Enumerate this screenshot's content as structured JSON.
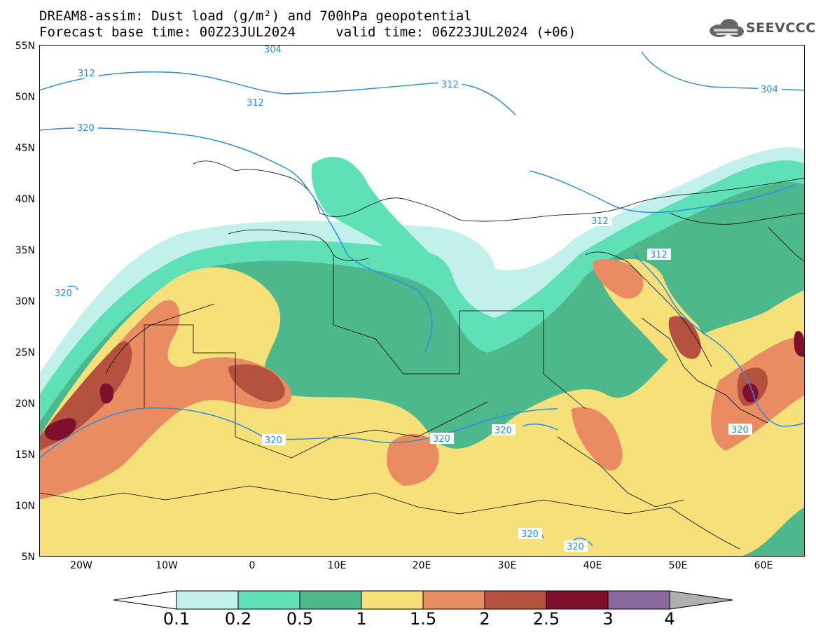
{
  "title": {
    "line1": "DREAM8-assim: Dust load (g/m²) and 700hPa geopotential",
    "line2_left": "Forecast base time: 00Z23JUL2024",
    "line2_right": "valid time: 06Z23JUL2024 (+06)"
  },
  "logo": {
    "text": "SEEVCCC",
    "icon": "cloud-icon"
  },
  "map": {
    "lat_labels": [
      "55N",
      "50N",
      "45N",
      "40N",
      "35N",
      "30N",
      "25N",
      "20N",
      "15N",
      "10N",
      "5N"
    ],
    "lon_labels": [
      "20W",
      "10W",
      "0",
      "10E",
      "20E",
      "30E",
      "40E",
      "50E",
      "60E"
    ],
    "contour_labels": [
      "304",
      "312",
      "312",
      "312",
      "304",
      "320",
      "312",
      "312",
      "320",
      "320",
      "320",
      "320",
      "320",
      "312",
      "320",
      "320"
    ],
    "colors": {
      "ocean_bg": "#ffffff",
      "border": "#000000",
      "contour": "#2a8fe0"
    }
  },
  "legend": {
    "labels": [
      "0.1",
      "0.2",
      "0.5",
      "1",
      "1.5",
      "2",
      "2.5",
      "3",
      "4"
    ],
    "colors": [
      "#c2f0ea",
      "#5fe0b7",
      "#4db88c",
      "#f5e07a",
      "#e98c62",
      "#b4513f",
      "#7f0f2d",
      "#8a6a9e",
      "#b0b0b0"
    ]
  }
}
